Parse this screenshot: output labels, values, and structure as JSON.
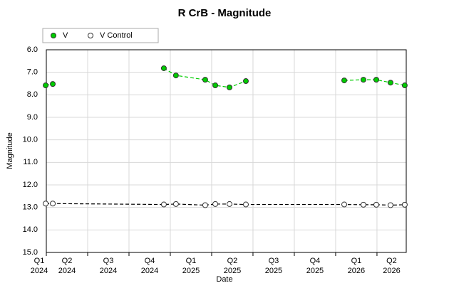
{
  "chart_data": {
    "type": "line",
    "title": "R CrB - Magnitude",
    "xlabel": "Date",
    "ylabel": "Magnitude",
    "xlim": [
      2024.25,
      2026.427
    ],
    "xticks": [
      {
        "value": 2024.125,
        "label": [
          "Q1",
          "2024"
        ]
      },
      {
        "value": 2024.375,
        "label": [
          "Q2",
          "2024"
        ]
      },
      {
        "value": 2024.625,
        "label": [
          "Q3",
          "2024"
        ]
      },
      {
        "value": 2024.875,
        "label": [
          "Q4",
          "2024"
        ]
      },
      {
        "value": 2025.125,
        "label": [
          "Q1",
          "2025"
        ]
      },
      {
        "value": 2025.375,
        "label": [
          "Q2",
          "2025"
        ]
      },
      {
        "value": 2025.625,
        "label": [
          "Q3",
          "2025"
        ]
      },
      {
        "value": 2025.875,
        "label": [
          "Q4",
          "2025"
        ]
      },
      {
        "value": 2026.125,
        "label": [
          "Q1",
          "2026"
        ]
      },
      {
        "value": 2026.375,
        "label": [
          "Q2",
          "2026"
        ]
      }
    ],
    "ylim": [
      15,
      6
    ],
    "yticks": [
      {
        "value": 6,
        "label": "6.0"
      },
      {
        "value": 7,
        "label": "7.0"
      },
      {
        "value": 8,
        "label": "8.0"
      },
      {
        "value": 9,
        "label": "9.0"
      },
      {
        "value": 10,
        "label": "10.0"
      },
      {
        "value": 11,
        "label": "11.0"
      },
      {
        "value": 12,
        "label": "12.0"
      },
      {
        "value": 13,
        "label": "13.0"
      },
      {
        "value": 14,
        "label": "14.0"
      },
      {
        "value": 15,
        "label": "15.0"
      }
    ],
    "grid": true,
    "legend": "top-left",
    "x": [
      2024.246,
      2024.289,
      2024.961,
      2025.034,
      2025.211,
      2025.272,
      2025.358,
      2025.457,
      2026.052,
      2026.168,
      2026.246,
      2026.332,
      2026.418
    ],
    "series": [
      {
        "name": "V",
        "color": "#00cc00",
        "values": [
          7.58,
          7.52,
          6.82,
          7.14,
          7.33,
          7.58,
          7.67,
          7.39,
          7.36,
          7.33,
          7.33,
          7.46,
          7.58
        ]
      },
      {
        "name": "V Control",
        "color": "#ffffff",
        "values": [
          12.83,
          12.83,
          12.87,
          12.85,
          12.9,
          12.85,
          12.85,
          12.87,
          12.87,
          12.88,
          12.88,
          12.9,
          12.88
        ]
      }
    ]
  }
}
